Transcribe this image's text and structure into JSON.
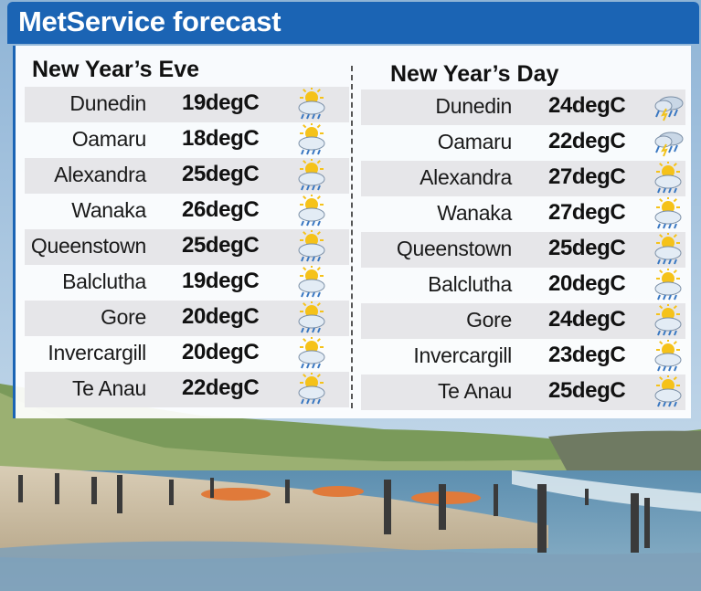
{
  "header": {
    "title": "MetService forecast"
  },
  "columns": [
    {
      "title": "New Year’s Eve",
      "rows": [
        {
          "town": "Dunedin",
          "temp": "19degC",
          "icon": "partly-cloudy-icon"
        },
        {
          "town": "Oamaru",
          "temp": "18degC",
          "icon": "partly-cloudy-icon"
        },
        {
          "town": "Alexandra",
          "temp": "25degC",
          "icon": "partly-cloudy-icon"
        },
        {
          "town": "Wanaka",
          "temp": "26degC",
          "icon": "partly-cloudy-icon"
        },
        {
          "town": "Queenstown",
          "temp": "25degC",
          "icon": "partly-cloudy-icon"
        },
        {
          "town": "Balclutha",
          "temp": "19degC",
          "icon": "partly-cloudy-icon"
        },
        {
          "town": "Gore",
          "temp": "20degC",
          "icon": "partly-cloudy-icon"
        },
        {
          "town": "Invercargill",
          "temp": "20degC",
          "icon": "partly-cloudy-icon"
        },
        {
          "town": "Te Anau",
          "temp": "22degC",
          "icon": "partly-cloudy-icon"
        }
      ]
    },
    {
      "title": "New Year’s Day",
      "rows": [
        {
          "town": "Dunedin",
          "temp": "24degC",
          "icon": "thunderstorm-icon"
        },
        {
          "town": "Oamaru",
          "temp": "22degC",
          "icon": "thunderstorm-icon"
        },
        {
          "town": "Alexandra",
          "temp": "27degC",
          "icon": "partly-cloudy-icon"
        },
        {
          "town": "Wanaka",
          "temp": "27degC",
          "icon": "partly-cloudy-icon"
        },
        {
          "town": "Queenstown",
          "temp": "25degC",
          "icon": "partly-cloudy-icon"
        },
        {
          "town": "Balclutha",
          "temp": "20degC",
          "icon": "partly-cloudy-icon"
        },
        {
          "town": "Gore",
          "temp": "24degC",
          "icon": "partly-cloudy-icon"
        },
        {
          "town": "Invercargill",
          "temp": "23degC",
          "icon": "partly-cloudy-icon"
        },
        {
          "town": "Te Anau",
          "temp": "25degC",
          "icon": "partly-cloudy-icon"
        }
      ]
    }
  ],
  "colors": {
    "header": "#1b64b4",
    "row_shade": "#e6e6e9",
    "sun": "#f5c21a",
    "cloud": "#c9d7e6",
    "rain": "#3a78c2"
  }
}
